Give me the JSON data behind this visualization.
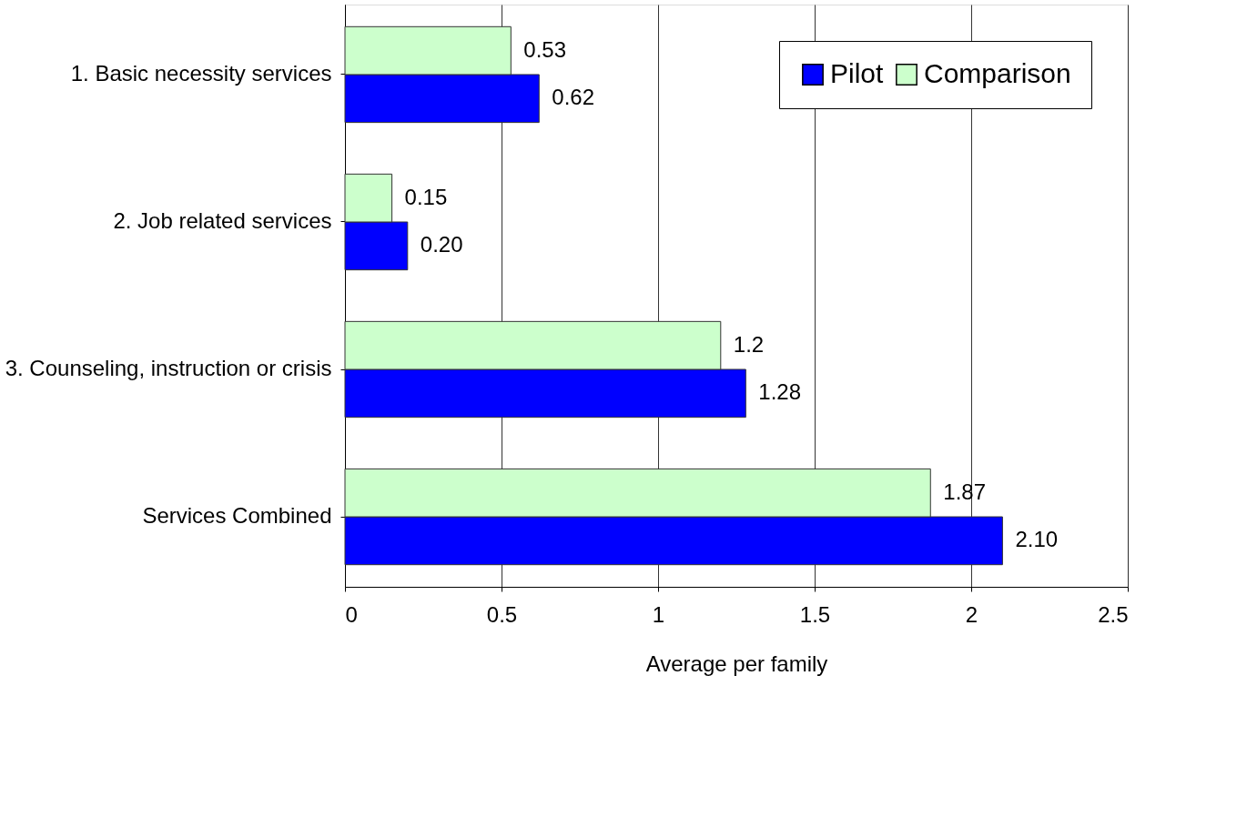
{
  "chart_data": {
    "type": "bar",
    "orientation": "horizontal",
    "xlabel": "Average per family",
    "categories": [
      "1. Basic necessity services",
      "2. Job related services",
      "3. Counseling, instruction or crisis",
      "Services Combined"
    ],
    "series": [
      {
        "name": "Pilot",
        "color": "#0000ff",
        "values": [
          0.62,
          0.2,
          1.28,
          2.1
        ],
        "value_labels": [
          "0.62",
          "0.20",
          "1.28",
          "2.10"
        ]
      },
      {
        "name": "Comparison",
        "color": "#ccffcc",
        "values": [
          0.53,
          0.15,
          1.2,
          1.87
        ],
        "value_labels": [
          "0.53",
          "0.15",
          "1.2",
          "1.87"
        ]
      }
    ],
    "xlim": [
      0,
      2.5
    ],
    "xticks": [
      0,
      0.5,
      1,
      1.5,
      2,
      2.5
    ],
    "grid": "x",
    "legend": "top right"
  }
}
